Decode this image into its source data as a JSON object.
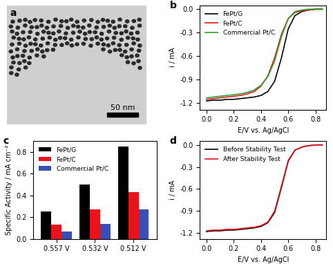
{
  "image_panel": {
    "panel": "a",
    "scale_bar": "50 nm"
  },
  "chart_data": [
    {
      "type": "line",
      "panel": "b",
      "x_label": "E/V vs. Ag/AgCl",
      "y_label": "i / mA",
      "x": [
        0.0,
        0.05,
        0.1,
        0.15,
        0.2,
        0.25,
        0.3,
        0.35,
        0.4,
        0.45,
        0.5,
        0.55,
        0.6,
        0.65,
        0.7,
        0.75,
        0.8,
        0.85
      ],
      "series": [
        {
          "name": "FePt/G",
          "color": "#000000",
          "values": [
            -1.17,
            -1.16,
            -1.16,
            -1.15,
            -1.15,
            -1.14,
            -1.13,
            -1.12,
            -1.1,
            -1.05,
            -0.92,
            -0.62,
            -0.25,
            -0.08,
            -0.03,
            -0.01,
            0.0,
            0.0
          ]
        },
        {
          "name": "FePt/C",
          "color": "#e8141c",
          "values": [
            -1.15,
            -1.14,
            -1.13,
            -1.12,
            -1.11,
            -1.1,
            -1.08,
            -1.05,
            -0.98,
            -0.85,
            -0.62,
            -0.32,
            -0.12,
            -0.04,
            -0.02,
            -0.01,
            0.0,
            0.0
          ]
        },
        {
          "name": "Commercial Pt/C",
          "color": "#2ca02c",
          "values": [
            -1.13,
            -1.12,
            -1.11,
            -1.1,
            -1.09,
            -1.08,
            -1.06,
            -1.03,
            -0.97,
            -0.86,
            -0.66,
            -0.35,
            -0.12,
            -0.03,
            -0.01,
            0.0,
            0.0,
            0.0
          ]
        }
      ],
      "xlim": [
        -0.05,
        0.88
      ],
      "xticks": [
        0.0,
        0.2,
        0.4,
        0.6,
        0.8
      ],
      "ylim": [
        -1.28,
        0.05
      ],
      "yticks": [
        -1.2,
        -0.9,
        -0.6,
        -0.3,
        0.0
      ],
      "legend": "upper left"
    },
    {
      "type": "bar",
      "panel": "c",
      "y_label": "Specific Activity / mA cm⁻²",
      "categories": [
        "0.557 V",
        "0.532 V",
        "0.512 V"
      ],
      "series": [
        {
          "name": "FePt/G",
          "color": "#000000",
          "values": [
            0.25,
            0.5,
            0.85
          ]
        },
        {
          "name": "FePt/C",
          "color": "#e8141c",
          "values": [
            0.13,
            0.27,
            0.43
          ]
        },
        {
          "name": "Commercial Pt/C",
          "color": "#3a4fb5",
          "values": [
            0.07,
            0.14,
            0.27
          ]
        }
      ],
      "ylim": [
        0.0,
        0.9
      ],
      "yticks": [
        0.0,
        0.2,
        0.4,
        0.6,
        0.8
      ],
      "legend": "upper left"
    },
    {
      "type": "line",
      "panel": "d",
      "x_label": "E/V vs. Ag/AgCl",
      "y_label": "i / mA",
      "x": [
        0.0,
        0.05,
        0.1,
        0.15,
        0.2,
        0.25,
        0.3,
        0.35,
        0.4,
        0.45,
        0.5,
        0.55,
        0.6,
        0.65,
        0.7,
        0.75,
        0.8,
        0.85
      ],
      "series": [
        {
          "name": "Before Stability Test",
          "color": "#000000",
          "values": [
            -1.18,
            -1.17,
            -1.17,
            -1.16,
            -1.16,
            -1.15,
            -1.14,
            -1.13,
            -1.11,
            -1.06,
            -0.92,
            -0.58,
            -0.22,
            -0.07,
            -0.03,
            -0.01,
            0.0,
            0.0
          ]
        },
        {
          "name": "After Stability Test",
          "color": "#e8141c",
          "values": [
            -1.17,
            -1.16,
            -1.16,
            -1.15,
            -1.15,
            -1.14,
            -1.13,
            -1.12,
            -1.1,
            -1.05,
            -0.9,
            -0.56,
            -0.21,
            -0.07,
            -0.03,
            -0.01,
            0.0,
            0.0
          ]
        }
      ],
      "xlim": [
        -0.05,
        0.88
      ],
      "xticks": [
        0.0,
        0.2,
        0.4,
        0.6,
        0.8
      ],
      "ylim": [
        -1.28,
        0.05
      ],
      "yticks": [
        -1.2,
        -0.9,
        -0.6,
        -0.3,
        0.0
      ],
      "legend": "upper left"
    }
  ]
}
